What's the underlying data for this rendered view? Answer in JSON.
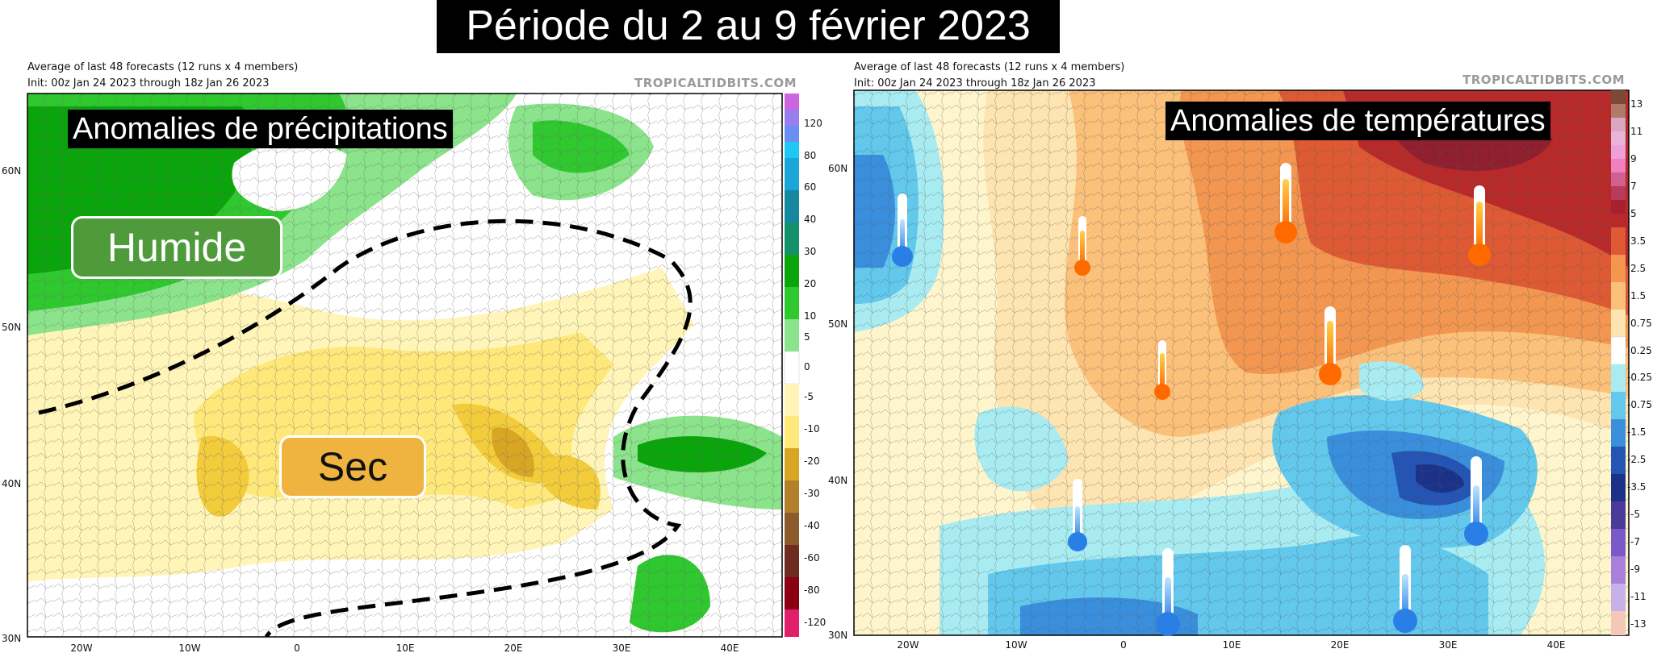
{
  "title": "Période du 2 au 9 février 2023",
  "colors": {
    "wet_dark": "#0aa50a",
    "wet_mid": "#2fc82f",
    "wet_light": "#8be48b",
    "wet_pale": "#cdf2cd",
    "dry_pale": "#fff5b8",
    "dry_light": "#ffe87a",
    "dry_mid": "#f3cc3c",
    "dry_dark": "#d9a624",
    "warm_pale": "#fde4b0",
    "warm_light": "#fbc07a",
    "warm_mid": "#f29650",
    "warm_dark": "#de5a34",
    "hot": "#b82a2a",
    "hot_dark": "#8f1f2e",
    "cold_pale": "#a8ecf2",
    "cold_light": "#62c8ec",
    "cold_mid": "#3a8fdd",
    "cold_dark": "#2454b4",
    "cold_deep": "#1b3288",
    "humide_bg": "#4f9a3b",
    "sec_bg": "#efb440"
  },
  "left": {
    "meta_line1": "Average of last 48 forecasts (12 runs x 4 members)",
    "meta_line2": "Init: 00z Jan 24 2023 through 18z Jan 26 2023",
    "brand": "TROPICALTIDBITS.COM",
    "overlay_title": "Anomalies de précipitations",
    "label_wet": "Humide",
    "label_dry": "Sec",
    "lat_labels": [
      "60N",
      "50N",
      "40N",
      "30N"
    ],
    "lon_labels": [
      "20W",
      "10W",
      "0",
      "10E",
      "20E",
      "30E",
      "40E"
    ],
    "colorbar_labels": [
      "120",
      "80",
      "60",
      "40",
      "30",
      "20",
      "10",
      "5",
      "0",
      "-5",
      "-10",
      "-20",
      "-30",
      "-40",
      "-60",
      "-80",
      "-120"
    ]
  },
  "right": {
    "meta_line1": "Average of last 48 forecasts (12 runs x 4 members)",
    "meta_line2": "Init: 00z Jan 24 2023 through 18z Jan 26 2023",
    "brand": "TROPICALTIDBITS.COM",
    "overlay_title": "Anomalies de températures",
    "lat_labels": [
      "60N",
      "50N",
      "40N",
      "30N"
    ],
    "lon_labels": [
      "20W",
      "10W",
      "0",
      "10E",
      "20E",
      "30E",
      "40E"
    ],
    "colorbar_labels": [
      "13",
      "11",
      "9",
      "7",
      "5",
      "3.5",
      "2.5",
      "1.5",
      "0.75",
      "0.25",
      "-0.25",
      "-0.75",
      "-1.5",
      "-2.5",
      "-3.5",
      "-5",
      "-7",
      "-9",
      "-11",
      "-13"
    ],
    "thermometers_warm": [
      "thermometer-warm-uk",
      "thermometer-warm-scandinavia",
      "thermometer-warm-russia",
      "thermometer-warm-france",
      "thermometer-warm-central-europe"
    ],
    "thermometers_cold": [
      "thermometer-cold-atlantic",
      "thermometer-cold-spain",
      "thermometer-cold-turkey",
      "thermometer-cold-algeria",
      "thermometer-cold-libya"
    ]
  }
}
